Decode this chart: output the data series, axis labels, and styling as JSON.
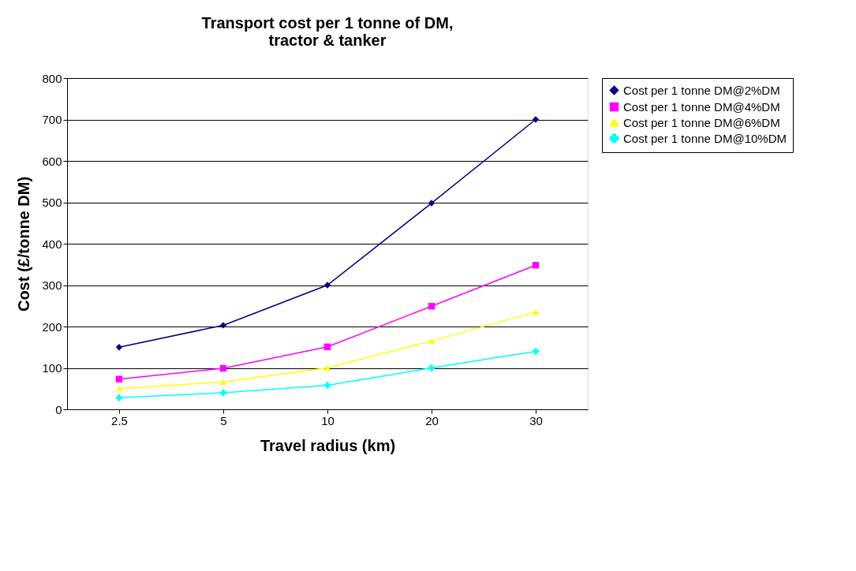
{
  "chart_data": {
    "type": "line",
    "title": "Transport cost per 1 tonne  of DM,\ntractor & tanker",
    "xlabel": "Travel radius (km)",
    "ylabel": "Cost (£/tonne DM)",
    "categories": [
      "2.5",
      "5",
      "10",
      "20",
      "30"
    ],
    "series": [
      {
        "name": "Cost per 1 tonne DM@2%DM",
        "color": "#000080",
        "marker": "diamond",
        "values": [
          150,
          203,
          300,
          498,
          700
        ]
      },
      {
        "name": "Cost per 1 tonne DM@4%DM",
        "color": "#ff00ff",
        "marker": "square",
        "values": [
          73,
          99,
          151,
          249,
          348
        ]
      },
      {
        "name": "Cost per 1 tonne DM@6%DM",
        "color": "#ffff00",
        "marker": "triangle",
        "values": [
          50,
          66,
          100,
          165,
          235
        ]
      },
      {
        "name": "Cost per 1 tonne DM@10%DM",
        "color": "#00ffff",
        "marker": "cross",
        "values": [
          28,
          40,
          58,
          100,
          140
        ]
      }
    ],
    "ylim": [
      0,
      800
    ],
    "yticks": [
      0,
      100,
      200,
      300,
      400,
      500,
      600,
      700,
      800
    ],
    "grid": "y",
    "legend": "right"
  }
}
